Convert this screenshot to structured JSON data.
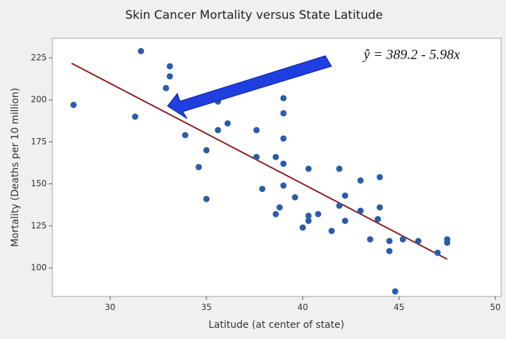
{
  "chart_data": {
    "type": "scatter",
    "title": "Skin Cancer Mortality versus State Latitude",
    "x_label": "Latitude (at center of state)",
    "y_label": "Mortality (Deaths per 10 million)",
    "annotation": "ŷ = 389.2 - 5.98x",
    "color": "#2b5ca8",
    "fit": {
      "intercept": 389.2,
      "slope": -5.98,
      "x_range": [
        28,
        47.5
      ],
      "color": "#8b1a1a"
    },
    "x": [
      28.1,
      31.3,
      31.6,
      32.9,
      33.1,
      33.1,
      33.9,
      34.6,
      35.0,
      35.0,
      35.6,
      35.6,
      36.1,
      37.6,
      37.6,
      37.9,
      38.6,
      38.6,
      38.8,
      39.0,
      39.0,
      39.0,
      39.0,
      39.0,
      39.6,
      40.0,
      40.3,
      40.3,
      40.3,
      40.8,
      41.5,
      41.9,
      41.9,
      42.2,
      42.2,
      43.0,
      43.0,
      43.5,
      43.9,
      44.0,
      44.0,
      44.5,
      44.5,
      44.8,
      45.2,
      46.0,
      47.0,
      47.5,
      47.5
    ],
    "values": [
      197,
      190,
      229,
      207,
      220,
      214,
      179,
      160,
      170,
      141,
      199,
      182,
      186,
      182,
      166,
      147,
      132,
      166,
      136,
      201,
      192,
      177,
      162,
      149,
      142,
      124,
      131,
      128,
      159,
      132,
      122,
      159,
      137,
      143,
      128,
      134,
      152,
      117,
      129,
      154,
      136,
      116,
      110,
      86,
      117,
      116,
      109,
      117,
      115
    ],
    "xlim": [
      27,
      50.3
    ],
    "xticks": [
      30,
      35,
      40,
      45,
      50
    ],
    "ylim": [
      83,
      236.6
    ],
    "yticks": [
      100,
      125,
      150,
      175,
      200,
      225
    ]
  }
}
